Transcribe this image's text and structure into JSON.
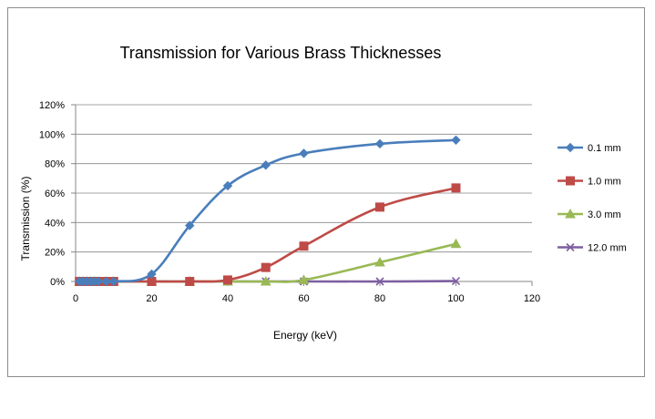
{
  "chart_data": {
    "type": "line",
    "title": "Transmission for Various Brass Thicknesses",
    "xlabel": "Energy (keV)",
    "ylabel": "Transmission (%)",
    "xlim": [
      0,
      120
    ],
    "ylim": [
      0,
      1.2
    ],
    "x_ticks": [
      0,
      20,
      40,
      60,
      80,
      100,
      120
    ],
    "x_tick_labels": [
      "0",
      "20",
      "40",
      "60",
      "80",
      "100",
      "120"
    ],
    "y_ticks": [
      0,
      0.2,
      0.4,
      0.6,
      0.8,
      1.0,
      1.2
    ],
    "y_tick_labels": [
      "0%",
      "20%",
      "40%",
      "60%",
      "80%",
      "100%",
      "120%"
    ],
    "grid": "horizontal",
    "legend_position": "right",
    "x": [
      1,
      2,
      3,
      4,
      5,
      6,
      8,
      10,
      20,
      30,
      40,
      50,
      60,
      80,
      100
    ],
    "series": [
      {
        "name": "0.1 mm",
        "color": "#4a7ebb",
        "marker": "diamond",
        "values": [
          0,
          0,
          0,
          0,
          0,
          0,
          0,
          0,
          0.05,
          0.38,
          0.65,
          0.79,
          0.87,
          0.935,
          0.96
        ]
      },
      {
        "name": "1.0 mm",
        "color": "#be4b48",
        "marker": "square",
        "values": [
          0,
          0,
          0,
          0,
          0,
          0,
          0,
          0,
          0,
          0,
          0.01,
          0.095,
          0.24,
          0.505,
          0.635
        ]
      },
      {
        "name": "3.0 mm",
        "color": "#98b954",
        "marker": "triangle",
        "values": [
          0,
          0,
          0,
          0,
          0,
          0,
          0,
          0,
          0,
          0,
          0,
          0,
          0.01,
          0.13,
          0.255
        ]
      },
      {
        "name": "12.0 mm",
        "color": "#7d5fa0",
        "marker": "x",
        "values": [
          0,
          0,
          0,
          0,
          0,
          0,
          0,
          0,
          0,
          0,
          0,
          0,
          0,
          0,
          0.003
        ]
      }
    ]
  }
}
